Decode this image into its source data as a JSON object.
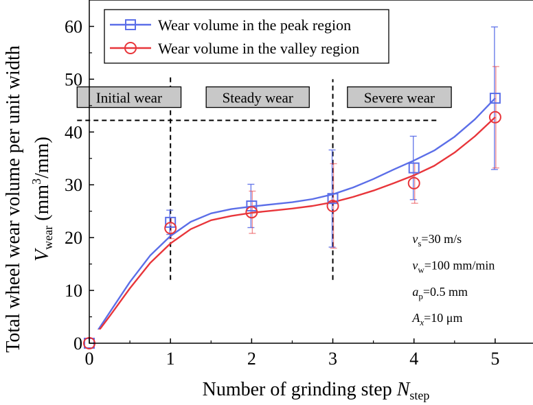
{
  "chart_data": {
    "type": "line",
    "xlabel": {
      "main": "Number of grinding step ",
      "var": "N",
      "sub": "step"
    },
    "ylabel": {
      "line1": "Total wheel wear volume per unit width",
      "var": "V",
      "sub": "wear",
      "unit_pre": " (mm",
      "unit_sup": "3",
      "unit_post": "/mm)"
    },
    "xlim": [
      0,
      5.5
    ],
    "ylim": [
      0,
      65
    ],
    "xticks": [
      "0",
      "1",
      "2",
      "3",
      "4",
      "5"
    ],
    "xtick_values": [
      0,
      1,
      2,
      3,
      4,
      5
    ],
    "yticks": [
      "0",
      "10",
      "20",
      "30",
      "40",
      "50",
      "60"
    ],
    "ytick_values": [
      0,
      10,
      20,
      30,
      40,
      50,
      60
    ],
    "legend_position": "top-left",
    "series": [
      {
        "name": "Wear volume in the peak region",
        "color": "#5b6ee8",
        "marker": "square",
        "x": [
          0,
          1,
          2,
          3,
          4,
          5
        ],
        "y": [
          0,
          22.9,
          26.0,
          27.4,
          33.2,
          46.4
        ],
        "err": [
          0,
          2.3,
          4.1,
          9.2,
          6.0,
          13.5
        ],
        "curve": [
          [
            0,
            0
          ],
          [
            0.25,
            5.8
          ],
          [
            0.5,
            11.6
          ],
          [
            0.75,
            16.6
          ],
          [
            1,
            20.3
          ],
          [
            1.25,
            23.0
          ],
          [
            1.5,
            24.6
          ],
          [
            1.75,
            25.4
          ],
          [
            2,
            25.9
          ],
          [
            2.25,
            26.3
          ],
          [
            2.5,
            26.7
          ],
          [
            2.75,
            27.3
          ],
          [
            3,
            28.2
          ],
          [
            3.25,
            29.5
          ],
          [
            3.5,
            31.1
          ],
          [
            3.75,
            32.9
          ],
          [
            4,
            34.6
          ],
          [
            4.25,
            36.5
          ],
          [
            4.5,
            39.1
          ],
          [
            4.75,
            42.4
          ],
          [
            5,
            46.4
          ]
        ]
      },
      {
        "name": "Wear volume in the valley region",
        "color": "#e8353a",
        "marker": "circle",
        "x": [
          0,
          1,
          2,
          3,
          4,
          5
        ],
        "y": [
          0,
          21.8,
          24.8,
          26.0,
          30.3,
          42.8
        ],
        "err": [
          0,
          2.0,
          4.0,
          8.0,
          3.8,
          9.6
        ],
        "curve": [
          [
            0,
            0
          ],
          [
            0.25,
            5.1
          ],
          [
            0.5,
            10.4
          ],
          [
            0.75,
            15.2
          ],
          [
            1,
            18.9
          ],
          [
            1.25,
            21.6
          ],
          [
            1.5,
            23.3
          ],
          [
            1.75,
            24.1
          ],
          [
            2,
            24.7
          ],
          [
            2.25,
            25.1
          ],
          [
            2.5,
            25.5
          ],
          [
            2.75,
            26.0
          ],
          [
            3,
            26.7
          ],
          [
            3.25,
            27.7
          ],
          [
            3.5,
            28.9
          ],
          [
            3.75,
            30.3
          ],
          [
            4,
            31.8
          ],
          [
            4.25,
            33.6
          ],
          [
            4.5,
            36.1
          ],
          [
            4.75,
            39.2
          ],
          [
            5,
            42.8
          ]
        ]
      }
    ],
    "region_labels": [
      {
        "label": "Initial wear",
        "x_from": -0.15,
        "x_to": 1.13,
        "y": 46.6
      },
      {
        "label": "Steady wear",
        "x_from": 1.44,
        "x_to": 2.71,
        "y": 46.6
      },
      {
        "label": "Severe wear",
        "x_from": 3.18,
        "x_to": 4.46,
        "y": 46.6
      }
    ],
    "reference_lines": {
      "horizontal": {
        "y": 42.2,
        "x_from": -0.15,
        "x_to": 4.3
      },
      "vertical": [
        {
          "x": 1,
          "y_from": 12.0,
          "y_to": 51.0
        },
        {
          "x": 3,
          "y_from": 12.0,
          "y_to": 50.0
        }
      ]
    },
    "annotations": [
      {
        "var": "v",
        "sub": "s",
        "text": "=30 m/s",
        "x": 3.98,
        "y": 19.0
      },
      {
        "var": "v",
        "sub": "w",
        "text": "=100 mm/min",
        "x": 3.98,
        "y": 14.0
      },
      {
        "var": "a",
        "sub": "p",
        "text": "=0.5 mm",
        "x": 3.98,
        "y": 9.0
      },
      {
        "var": "A",
        "sub": "x",
        "text": "=10 μm",
        "x": 3.98,
        "y": 4.0
      }
    ]
  }
}
